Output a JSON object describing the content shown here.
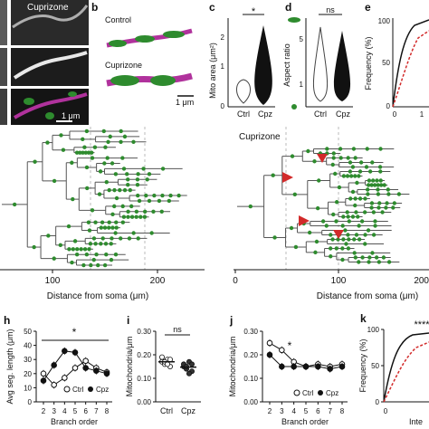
{
  "colors": {
    "green": "#2e8b2e",
    "magenta": "#b0329c",
    "red": "#d22a2a",
    "em_bg": "#2a2a2a"
  },
  "top_row": {
    "em_label": "Cuprizone",
    "em_scalebar": "1 μm",
    "panel_b": {
      "letter": "b",
      "control": "Control",
      "cuprizone": "Cuprizone",
      "scalebar": "1 μm"
    },
    "panel_c": {
      "letter": "c",
      "ylabel": "Mito area (μm²)",
      "sig": "*",
      "ticks": [
        "2",
        "1",
        "0"
      ],
      "categories": [
        "Ctrl",
        "Cpz"
      ]
    },
    "panel_d": {
      "letter": "d",
      "ylabel": "Aspect ratio",
      "sig": "ns",
      "ticks": [
        "5",
        "1"
      ],
      "categories": [
        "Ctrl",
        "Cpz"
      ]
    },
    "panel_e": {
      "letter": "e",
      "ylabel": "Frequency (%)",
      "ticks": [
        "100",
        "50",
        "0"
      ],
      "xticks": [
        "0",
        "1"
      ]
    }
  },
  "middle_row": {
    "left": {
      "xlabel": "Distance from soma (μm)",
      "xticks": [
        "100",
        "200"
      ]
    },
    "right": {
      "title": "Cuprizone",
      "xlabel": "Distance from soma (μm)",
      "xticks": [
        "0",
        "100",
        "200"
      ]
    }
  },
  "chart_data": [
    {
      "panel": "h",
      "type": "line",
      "xlabel": "Branch order",
      "ylabel": "Avg seg. length (μm)",
      "x": [
        2,
        3,
        4,
        5,
        6,
        7,
        8
      ],
      "ylim": [
        0,
        50
      ],
      "yticks": [
        "0",
        "10",
        "20",
        "30",
        "40",
        "50"
      ],
      "significance": "*",
      "series": [
        {
          "name": "Ctrl",
          "values": [
            20,
            12,
            17,
            24,
            29,
            24,
            21
          ]
        },
        {
          "name": "Cpz",
          "values": [
            15,
            26,
            36,
            35,
            24,
            22,
            20
          ]
        }
      ]
    },
    {
      "panel": "i",
      "type": "scatter",
      "ylabel": "Mitochondria/μm",
      "categories": [
        "Ctrl",
        "Cpz"
      ],
      "ylim": [
        0,
        0.3
      ],
      "yticks": [
        "0.00",
        "0.10",
        "0.20",
        "0.30"
      ],
      "significance": "ns",
      "series": [
        {
          "name": "Ctrl",
          "values": [
            0.17,
            0.16,
            0.18,
            0.15,
            0.19,
            0.17,
            0.16,
            0.18
          ]
        },
        {
          "name": "Cpz",
          "values": [
            0.15,
            0.14,
            0.17,
            0.13,
            0.16,
            0.15,
            0.12,
            0.16
          ]
        }
      ]
    },
    {
      "panel": "j",
      "type": "line",
      "xlabel": "Branch order",
      "ylabel": "Mitochondria/μm",
      "x": [
        2,
        3,
        4,
        5,
        6,
        7,
        8
      ],
      "ylim": [
        0,
        0.3
      ],
      "yticks": [
        "0.00",
        "0.10",
        "0.20",
        "0.30"
      ],
      "significance": "*",
      "series": [
        {
          "name": "Ctrl",
          "values": [
            0.25,
            0.22,
            0.17,
            0.15,
            0.16,
            0.15,
            0.16
          ]
        },
        {
          "name": "Cpz",
          "values": [
            0.2,
            0.15,
            0.15,
            0.15,
            0.15,
            0.14,
            0.15
          ]
        }
      ]
    },
    {
      "panel": "k",
      "type": "line",
      "ylabel": "Frequency (%)",
      "xlabel": "Inte",
      "ylim": [
        0,
        100
      ],
      "yticks": [
        "0",
        "50",
        "100"
      ],
      "xticks": [
        "0"
      ],
      "significance": "****"
    }
  ]
}
